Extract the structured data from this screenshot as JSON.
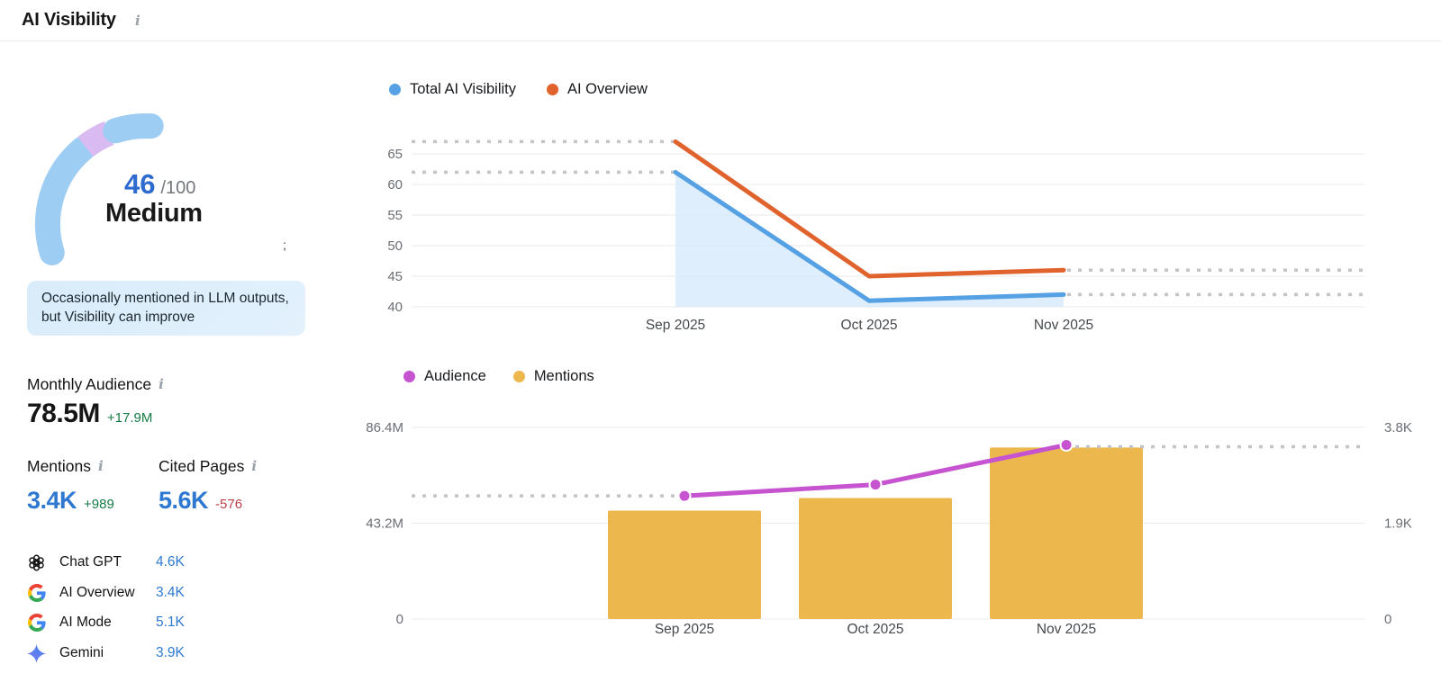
{
  "header": {
    "title": "AI Visibility",
    "info_icon": "info-icon"
  },
  "score_panel": {
    "score": "46",
    "score_max": "/100",
    "rating": "Medium",
    "stray_glyph": ";",
    "description": "Occasionally mentioned in LLM outputs, but Visibility can improve",
    "gauge": {
      "value": 46,
      "max": 100,
      "arc_color": "#9ecdf3",
      "segment_color": "#d9bbf2"
    }
  },
  "stats": {
    "monthly_audience": {
      "label": "Monthly Audience",
      "value": "78.5M",
      "change": "+17.9M",
      "change_direction": "up"
    },
    "mentions": {
      "label": "Mentions",
      "value": "3.4K",
      "change": "+989",
      "change_direction": "up"
    },
    "cited_pages": {
      "label": "Cited Pages",
      "value": "5.6K",
      "change": "-576",
      "change_direction": "down"
    }
  },
  "platforms": [
    {
      "icon": "chatgpt-icon",
      "label": "Chat GPT",
      "value": "4.6K"
    },
    {
      "icon": "google-icon",
      "label": "AI Overview",
      "value": "3.4K"
    },
    {
      "icon": "google-icon",
      "label": "AI Mode",
      "value": "5.1K"
    },
    {
      "icon": "gemini-icon",
      "label": "Gemini",
      "value": "3.9K"
    }
  ],
  "chart_data": [
    {
      "type": "line",
      "title": "AI Visibility trend",
      "categories": [
        "Sep 2025",
        "Oct 2025",
        "Nov 2025"
      ],
      "series": [
        {
          "name": "Total AI Visibility",
          "color": "#55a1e3",
          "values": [
            62,
            41,
            42
          ],
          "area_fill": "#d7eafb"
        },
        {
          "name": "AI Overview",
          "color": "#e0622d",
          "values": [
            67,
            45,
            46
          ]
        }
      ],
      "yticks": [
        40,
        45,
        50,
        55,
        60,
        65
      ],
      "ylim": [
        40,
        70
      ],
      "grid": true,
      "legend_position": "top",
      "annotations": "dashed gray reference lines extend left from the first data points and right from the last data points"
    },
    {
      "type": "bar",
      "title": "Audience and Mentions trend",
      "categories": [
        "Sep 2025",
        "Oct 2025",
        "Nov 2025"
      ],
      "series": [
        {
          "name": "Audience",
          "render": "line",
          "axis": "left",
          "color": "#c653cf",
          "values": [
            55500000,
            60600000,
            78500000
          ],
          "value_labels": [
            "55.5M",
            "60.6M",
            "78.5M"
          ]
        },
        {
          "name": "Mentions",
          "render": "bar",
          "axis": "right",
          "color": "#ecb84d",
          "values": [
            2150,
            2400,
            3400
          ],
          "value_labels": [
            "2.15K",
            "2.4K",
            "3.4K"
          ]
        }
      ],
      "left_axis": {
        "tick_labels": [
          "86.4M",
          "43.2M",
          "0"
        ],
        "max": 86400000
      },
      "right_axis": {
        "tick_labels": [
          "3.8K",
          "1.9K",
          "0"
        ],
        "max": 3800
      },
      "grid": true,
      "legend_position": "top",
      "annotations": "dashed gray reference lines extend left from the first Audience point and right from the last point"
    }
  ],
  "colors": {
    "accent_blue_text": "#2e78d2",
    "positive_green": "#157a45",
    "negative_red": "#bb4049",
    "description_box_bg": "#dcecfa",
    "gridline": "#e9e9eb",
    "dashed_line": "#c4c4c8"
  }
}
